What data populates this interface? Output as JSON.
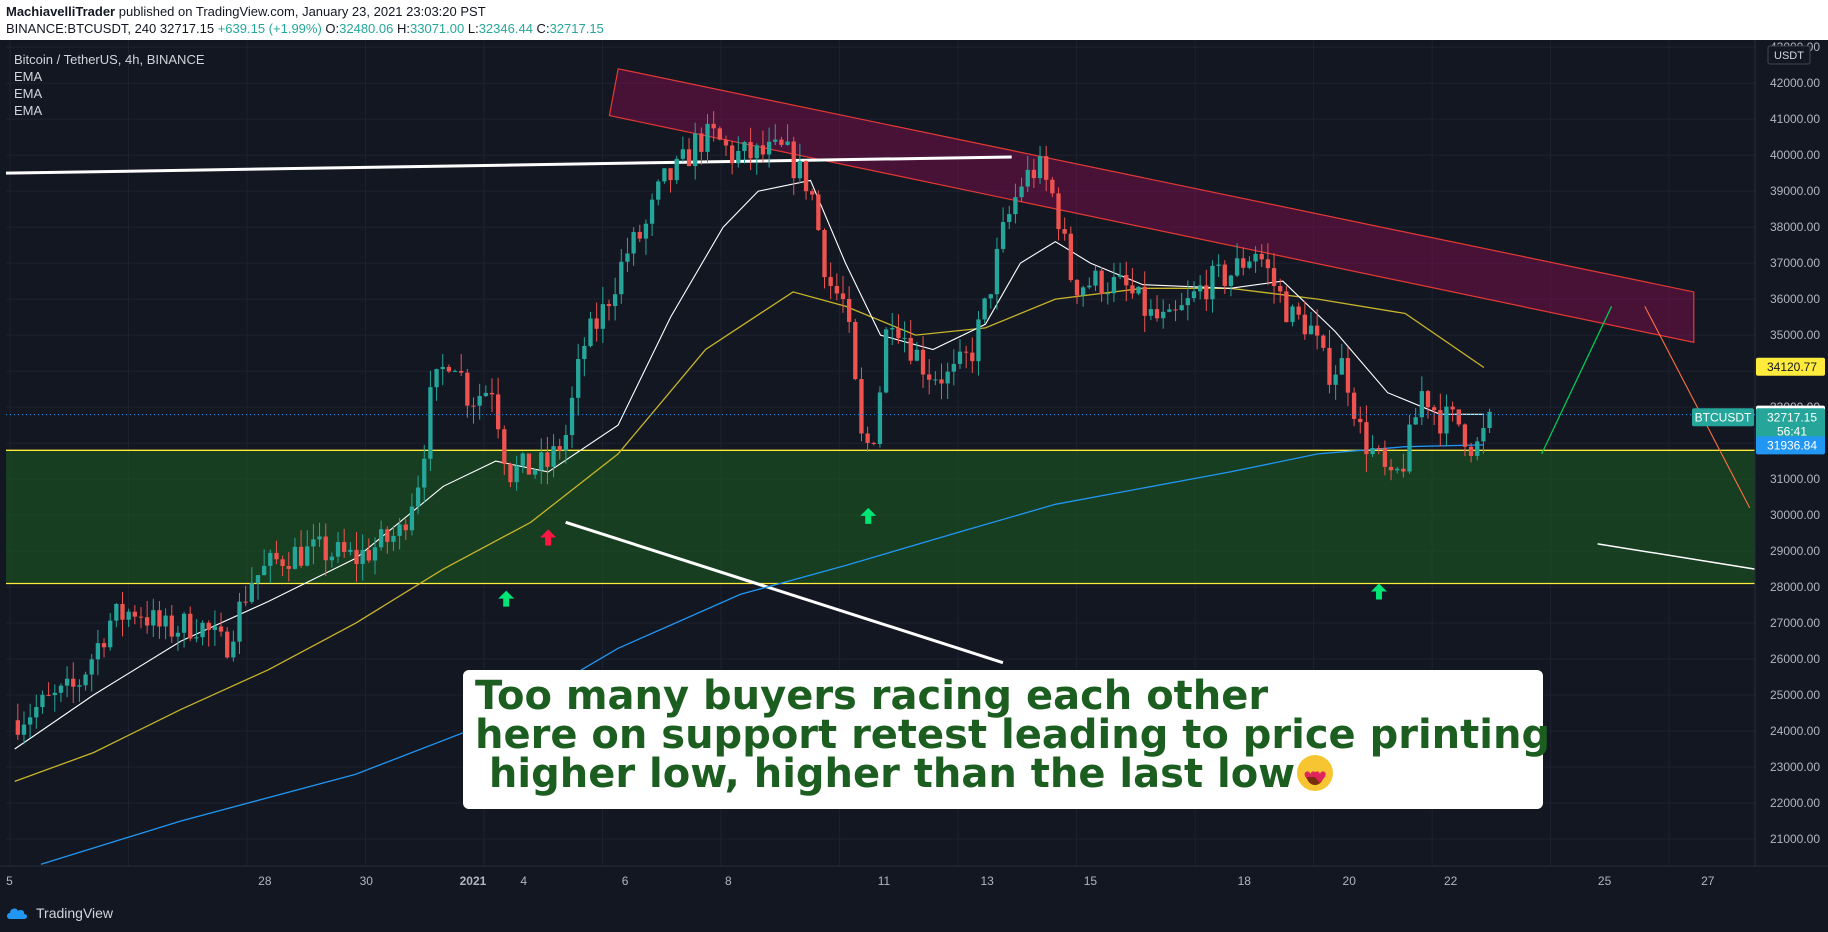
{
  "header": {
    "author": "MachiavelliTrader",
    "published": "published on TradingView.com, January 23, 2021 23:03:20 PST",
    "symbol_line_prefix": "BINANCE:BTCUSDT, 240 32717.15 ",
    "change": "+639.15 (+1.99%)",
    "o_label": " O:",
    "o": "32480.06",
    "h_label": " H:",
    "h": "33071.00",
    "l_label": " L:",
    "l": "32346.44",
    "c_label": " C:",
    "c": "32717.15"
  },
  "legend": {
    "title": "Bitcoin / TetherUS, 4h, BINANCE",
    "indicators": [
      "EMA",
      "EMA",
      "EMA"
    ]
  },
  "footer": {
    "brand": "TradingView"
  },
  "annotation": {
    "line1": "Too many buyers racing each other",
    "line2": "here on support retest leading to price printing",
    "line3": " higher low, higher than the last low",
    "emoji": "heart-eyes-emoji"
  },
  "colors": {
    "background": "#131722",
    "up": "#26a69a",
    "down": "#ef5350",
    "support_zone": "#1b5e20",
    "resistance_channel": "#880e4f",
    "ema_fast": "#ffffff",
    "ema_mid": "#c8b42a",
    "ema_slow": "#2196f3"
  },
  "chart_data": {
    "type": "candlestick",
    "symbol": "BTCUSDT",
    "timeframe": "4h",
    "y_axis": {
      "unit": "USDT",
      "ticks": [
        "21000.00",
        "22000.00",
        "23000.00",
        "24000.00",
        "25000.00",
        "26000.00",
        "27000.00",
        "28000.00",
        "29000.00",
        "30000.00",
        "31000.00",
        "32000.00",
        "33000.00",
        "34000.00",
        "35000.00",
        "36000.00",
        "37000.00",
        "38000.00",
        "39000.00",
        "40000.00",
        "41000.00",
        "42000.00",
        "43000.00"
      ],
      "range": [
        20250,
        43200
      ]
    },
    "x_axis": {
      "ticks": [
        "5",
        "28",
        "30",
        "2021",
        "4",
        "6",
        "8",
        "11",
        "13",
        "15",
        "18",
        "20",
        "22",
        "25",
        "27"
      ]
    },
    "price_labels": [
      {
        "text": "34120.77",
        "value": 34120.77,
        "color": "#ffeb3b",
        "text_color": "#131722"
      },
      {
        "text": "32791.43",
        "value": 32791.43,
        "color": "#ffffff",
        "text_color": "#131722"
      },
      {
        "text": "32717.15",
        "value": 32717.15,
        "color": "#26a69a",
        "text_color": "#ffffff",
        "tag": "BTCUSDT"
      },
      {
        "text": "56:41",
        "value": 32320,
        "color": "#26a69a",
        "text_color": "#ffffff"
      },
      {
        "text": "31936.84",
        "value": 31936.84,
        "color": "#2196f3",
        "text_color": "#ffffff"
      }
    ],
    "support_zone": [
      28100,
      31800
    ],
    "resistance_channel": {
      "upper": [
        [
          0.35,
          42400
        ],
        [
          0.965,
          36200
        ]
      ],
      "lower": [
        [
          0.345,
          41100
        ],
        [
          0.965,
          34800
        ]
      ]
    },
    "close_path": [
      [
        0.005,
        24300
      ],
      [
        0.02,
        24700
      ],
      [
        0.04,
        25200
      ],
      [
        0.06,
        27100
      ],
      [
        0.075,
        27400
      ],
      [
        0.09,
        26800
      ],
      [
        0.11,
        27000
      ],
      [
        0.125,
        26300
      ],
      [
        0.14,
        28200
      ],
      [
        0.16,
        28900
      ],
      [
        0.18,
        29000
      ],
      [
        0.2,
        28800
      ],
      [
        0.225,
        29500
      ],
      [
        0.237,
        31200
      ],
      [
        0.243,
        33300
      ],
      [
        0.255,
        34600
      ],
      [
        0.265,
        33200
      ],
      [
        0.278,
        33600
      ],
      [
        0.287,
        31200
      ],
      [
        0.3,
        31300
      ],
      [
        0.31,
        31400
      ],
      [
        0.32,
        32200
      ],
      [
        0.33,
        34700
      ],
      [
        0.34,
        35500
      ],
      [
        0.355,
        37300
      ],
      [
        0.365,
        37900
      ],
      [
        0.375,
        39200
      ],
      [
        0.385,
        39600
      ],
      [
        0.395,
        40400
      ],
      [
        0.405,
        40500
      ],
      [
        0.415,
        40000
      ],
      [
        0.43,
        40000
      ],
      [
        0.445,
        40100
      ],
      [
        0.46,
        39100
      ],
      [
        0.47,
        36500
      ],
      [
        0.48,
        35800
      ],
      [
        0.49,
        31700
      ],
      [
        0.497,
        32400
      ],
      [
        0.505,
        35800
      ],
      [
        0.515,
        34900
      ],
      [
        0.527,
        34000
      ],
      [
        0.54,
        33800
      ],
      [
        0.552,
        34500
      ],
      [
        0.56,
        35800
      ],
      [
        0.57,
        37800
      ],
      [
        0.58,
        39200
      ],
      [
        0.59,
        39700
      ],
      [
        0.6,
        38700
      ],
      [
        0.61,
        36400
      ],
      [
        0.625,
        36500
      ],
      [
        0.64,
        36300
      ],
      [
        0.655,
        35500
      ],
      [
        0.665,
        35300
      ],
      [
        0.675,
        35800
      ],
      [
        0.685,
        36400
      ],
      [
        0.7,
        36700
      ],
      [
        0.715,
        37400
      ],
      [
        0.725,
        36400
      ],
      [
        0.735,
        35500
      ],
      [
        0.745,
        35300
      ],
      [
        0.755,
        34000
      ],
      [
        0.765,
        34200
      ],
      [
        0.775,
        32200
      ],
      [
        0.785,
        31500
      ],
      [
        0.792,
        30800
      ],
      [
        0.8,
        31600
      ],
      [
        0.81,
        33500
      ],
      [
        0.82,
        32700
      ],
      [
        0.83,
        32600
      ],
      [
        0.84,
        31800
      ],
      [
        0.85,
        32700
      ]
    ],
    "ema_fast": [
      [
        0.005,
        23500
      ],
      [
        0.05,
        25000
      ],
      [
        0.1,
        26500
      ],
      [
        0.15,
        27600
      ],
      [
        0.2,
        28800
      ],
      [
        0.25,
        30800
      ],
      [
        0.28,
        31500
      ],
      [
        0.31,
        31200
      ],
      [
        0.35,
        32500
      ],
      [
        0.38,
        35500
      ],
      [
        0.41,
        38000
      ],
      [
        0.43,
        39000
      ],
      [
        0.46,
        39300
      ],
      [
        0.48,
        37000
      ],
      [
        0.5,
        35000
      ],
      [
        0.53,
        34600
      ],
      [
        0.56,
        35300
      ],
      [
        0.58,
        37000
      ],
      [
        0.6,
        37600
      ],
      [
        0.62,
        37000
      ],
      [
        0.65,
        36400
      ],
      [
        0.7,
        36300
      ],
      [
        0.73,
        36500
      ],
      [
        0.76,
        35100
      ],
      [
        0.79,
        33400
      ],
      [
        0.82,
        32800
      ],
      [
        0.845,
        32800
      ]
    ],
    "ema_mid": [
      [
        0.005,
        22600
      ],
      [
        0.05,
        23400
      ],
      [
        0.1,
        24600
      ],
      [
        0.15,
        25700
      ],
      [
        0.2,
        27000
      ],
      [
        0.25,
        28500
      ],
      [
        0.3,
        29800
      ],
      [
        0.35,
        31700
      ],
      [
        0.4,
        34600
      ],
      [
        0.45,
        36200
      ],
      [
        0.48,
        35800
      ],
      [
        0.52,
        35000
      ],
      [
        0.56,
        35200
      ],
      [
        0.6,
        36000
      ],
      [
        0.65,
        36300
      ],
      [
        0.7,
        36300
      ],
      [
        0.75,
        36000
      ],
      [
        0.8,
        35600
      ],
      [
        0.845,
        34100
      ]
    ],
    "ema_slow": [
      [
        0.02,
        20300
      ],
      [
        0.1,
        21500
      ],
      [
        0.2,
        22800
      ],
      [
        0.28,
        24300
      ],
      [
        0.35,
        26300
      ],
      [
        0.42,
        27800
      ],
      [
        0.48,
        28600
      ],
      [
        0.55,
        29600
      ],
      [
        0.6,
        30300
      ],
      [
        0.7,
        31200
      ],
      [
        0.75,
        31700
      ],
      [
        0.8,
        31900
      ],
      [
        0.845,
        31950
      ]
    ],
    "arrows": [
      {
        "x": 0.286,
        "value": 27900,
        "direction": "up",
        "color": "#00e676"
      },
      {
        "x": 0.31,
        "value": 29600,
        "direction": "up",
        "color": "#ff1744"
      },
      {
        "x": 0.493,
        "value": 30200,
        "direction": "up",
        "color": "#00e676"
      },
      {
        "x": 0.785,
        "value": 28100,
        "direction": "up",
        "color": "#00e676"
      }
    ]
  }
}
